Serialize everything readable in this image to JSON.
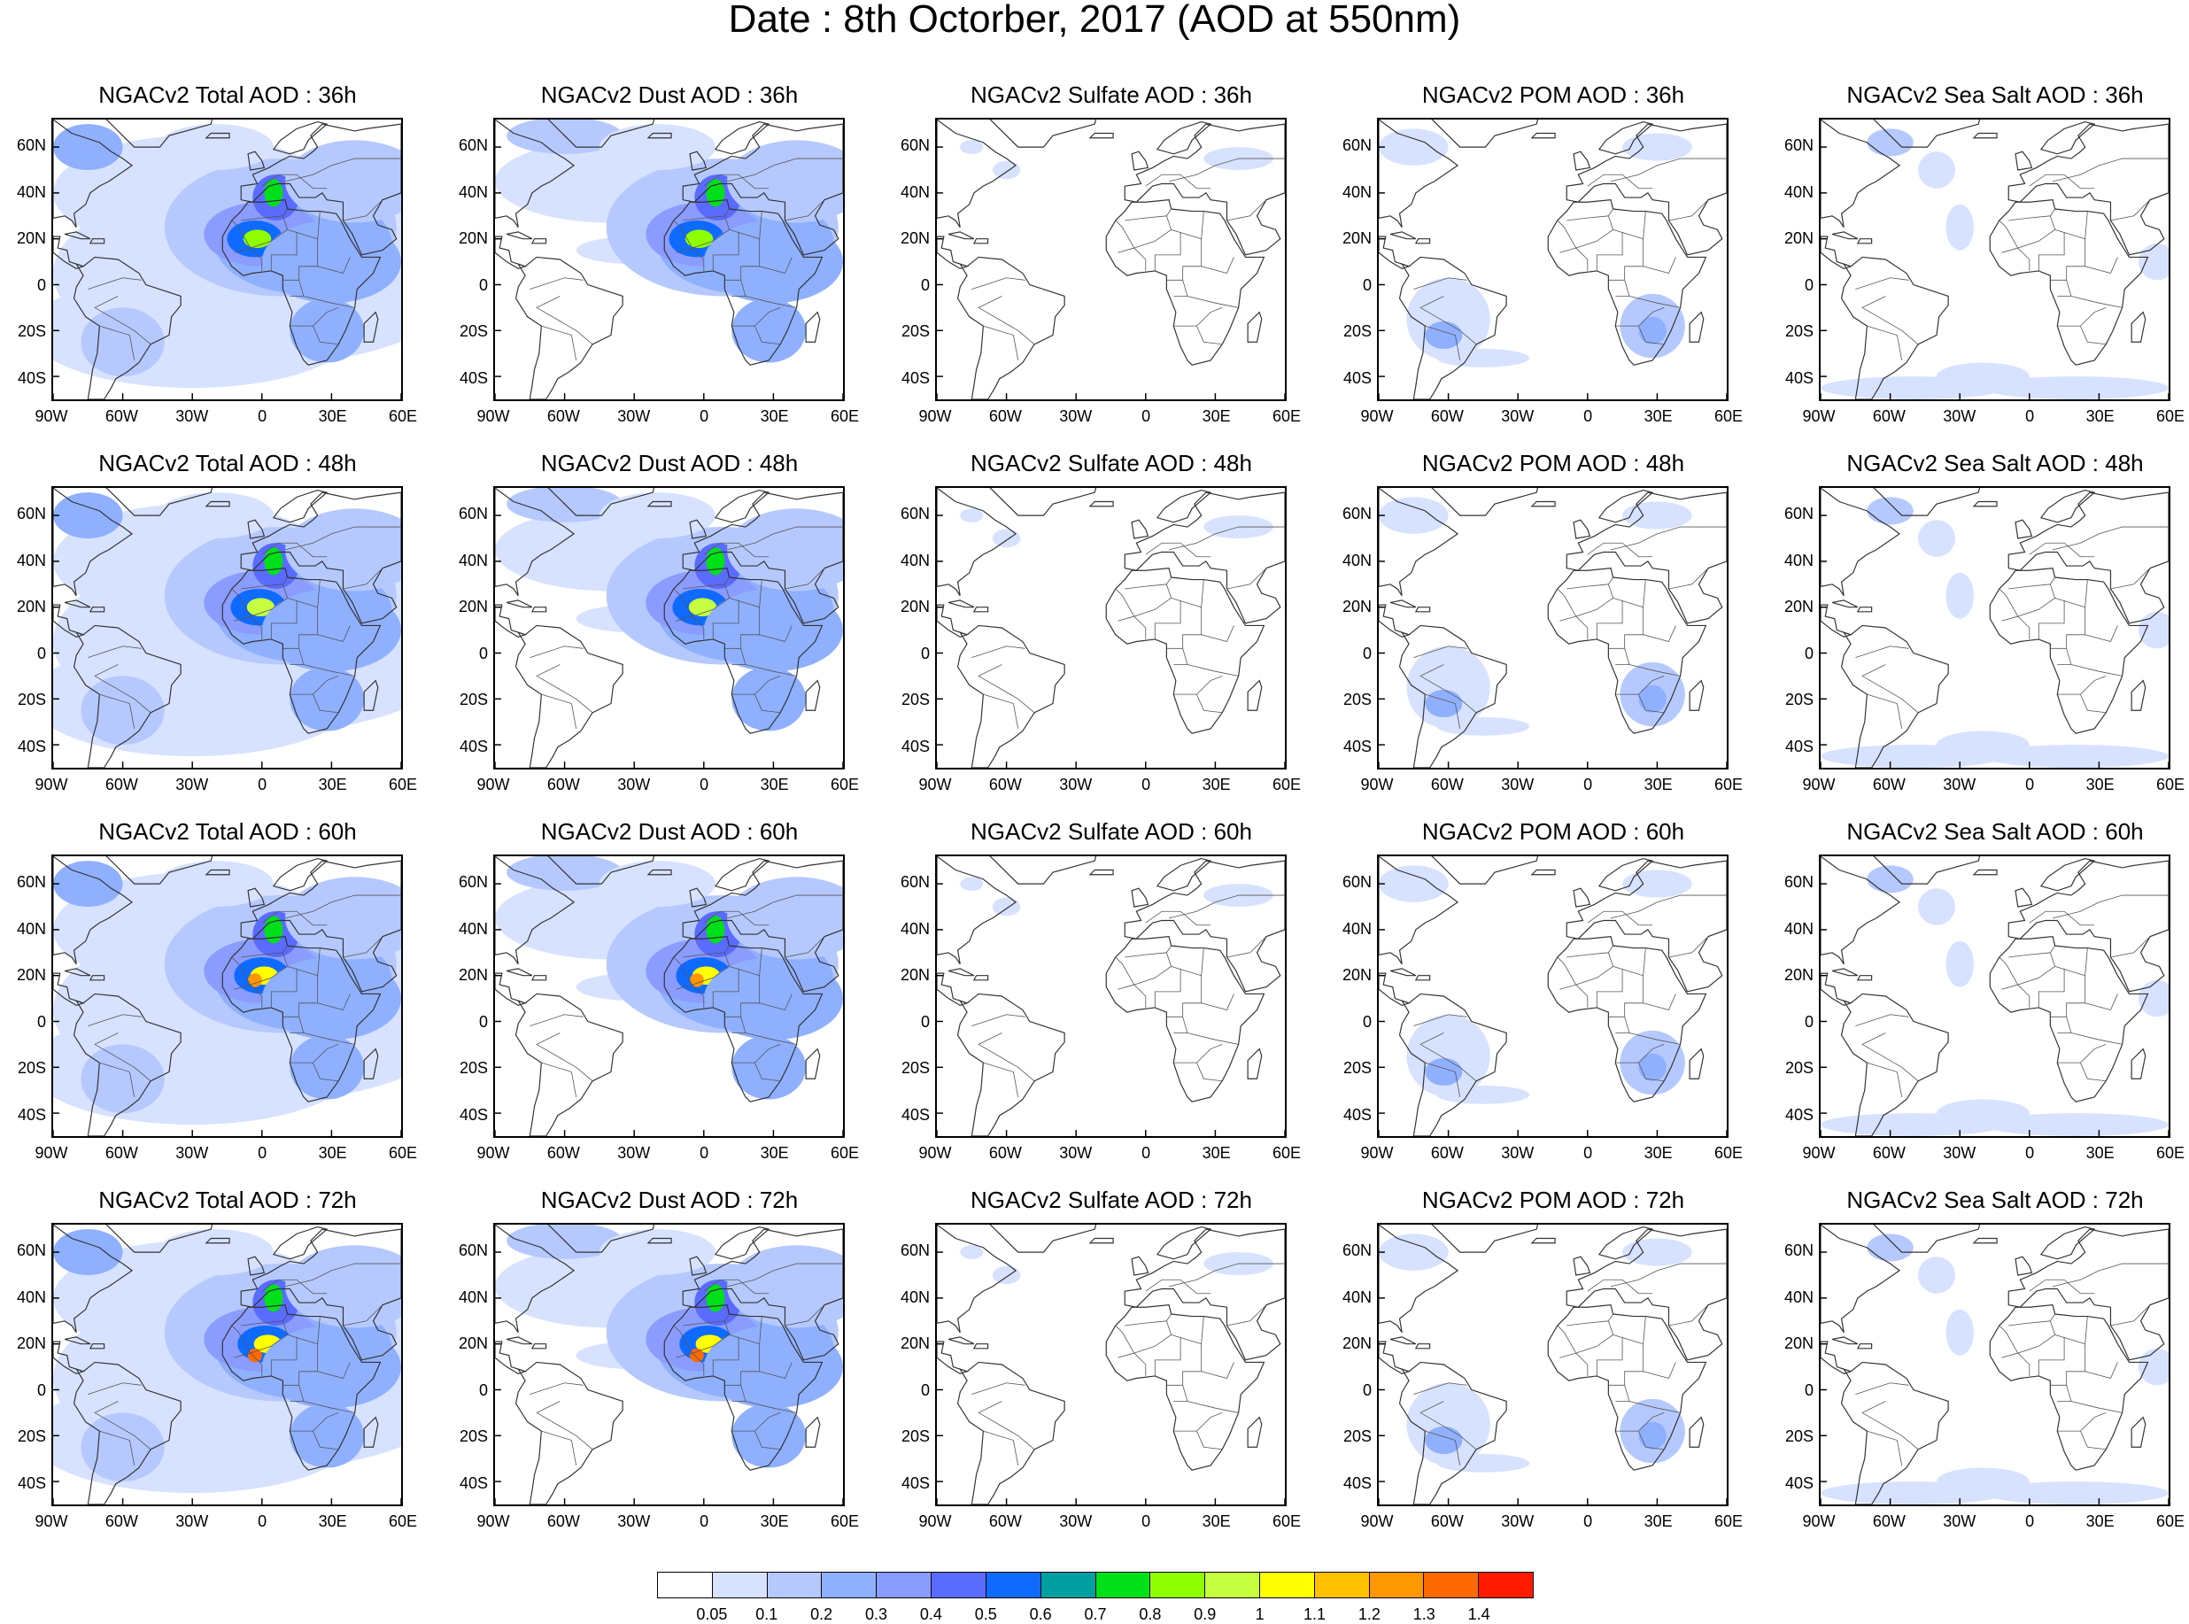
{
  "title": "Date : 8th Octorber, 2017 (AOD at 550nm)",
  "lat_labels": [
    "60N",
    "40N",
    "20N",
    "0",
    "20S",
    "40S"
  ],
  "lon_labels": [
    "90W",
    "60W",
    "30W",
    "0",
    "30E",
    "60E"
  ],
  "rows": [
    [
      "NGACv2 Total AOD : 36h",
      "NGACv2 Dust AOD : 36h",
      "NGACv2 Sulfate AOD : 36h",
      "NGACv2 POM AOD : 36h",
      "NGACv2 Sea Salt AOD : 36h"
    ],
    [
      "NGACv2 Total AOD : 48h",
      "NGACv2 Dust AOD : 48h",
      "NGACv2 Sulfate AOD : 48h",
      "NGACv2 POM AOD : 48h",
      "NGACv2 Sea Salt AOD : 48h"
    ],
    [
      "NGACv2 Total AOD : 60h",
      "NGACv2 Dust AOD : 60h",
      "NGACv2 Sulfate AOD : 60h",
      "NGACv2 POM AOD : 60h",
      "NGACv2 Sea Salt AOD : 60h"
    ],
    [
      "NGACv2 Total AOD : 72h",
      "NGACv2 Dust AOD : 72h",
      "NGACv2 Sulfate AOD : 72h",
      "NGACv2 POM AOD : 72h",
      "NGACv2 Sea Salt  AOD : 72h"
    ]
  ],
  "colorbar": {
    "labels": [
      "0.05",
      "0.1",
      "0.2",
      "0.3",
      "0.4",
      "0.5",
      "0.6",
      "0.7",
      "0.8",
      "0.9",
      "1",
      "1.1",
      "1.2",
      "1.3",
      "1.4"
    ],
    "colors": [
      "#ffffff",
      "#d6e2ff",
      "#b5c9ff",
      "#8fb0ff",
      "#8a9cff",
      "#5a6bff",
      "#0f6bff",
      "#00a0a0",
      "#00e01a",
      "#8fff00",
      "#c6ff40",
      "#ffff00",
      "#ffc000",
      "#ff9800",
      "#ff6a00",
      "#ff1a00"
    ]
  }
}
